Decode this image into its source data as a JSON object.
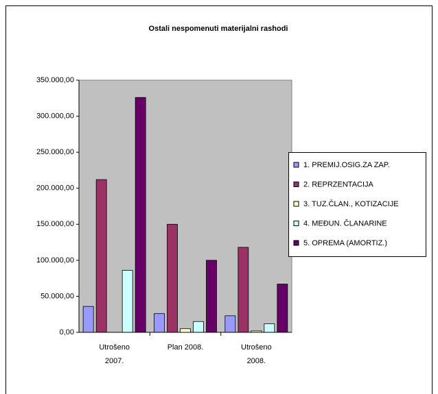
{
  "chart_data": {
    "type": "bar",
    "title": "Ostali nespomenuti materijalni rashodi",
    "categories": [
      "Utrošeno 2007.",
      "Plan 2008.",
      "Utrošeno 2008."
    ],
    "series": [
      {
        "name": "1. PREMIJ.OSIG.ZA ZAP.",
        "color": "#9999ff",
        "values": [
          36000,
          26000,
          23000
        ]
      },
      {
        "name": "2. REPRZENTACIJA",
        "color": "#993366",
        "values": [
          212000,
          150000,
          118000
        ]
      },
      {
        "name": "3. TUZ.ČLAN., KOTIZACIJE",
        "color": "#ffffcc",
        "values": [
          0,
          5000,
          2000
        ]
      },
      {
        "name": "4. MEĐUN. ČLANARINE",
        "color": "#ccffff",
        "values": [
          86000,
          15000,
          12000
        ]
      },
      {
        "name": "5. OPREMA (AMORTIZ.)",
        "color": "#660066",
        "values": [
          326000,
          100000,
          67000
        ]
      }
    ],
    "ylim": [
      0,
      350000
    ],
    "yticks": [
      {
        "value": 0,
        "label": "0,00"
      },
      {
        "value": 50000,
        "label": "50.000,00"
      },
      {
        "value": 100000,
        "label": "100.000,00"
      },
      {
        "value": 150000,
        "label": "150.000,00"
      },
      {
        "value": 200000,
        "label": "200.000,00"
      },
      {
        "value": 250000,
        "label": "250.000,00"
      },
      {
        "value": 300000,
        "label": "300.000,00"
      },
      {
        "value": 350000,
        "label": "350.000,00"
      }
    ],
    "grid": false,
    "legend": "right",
    "plot_background": "#c0c0c0"
  }
}
